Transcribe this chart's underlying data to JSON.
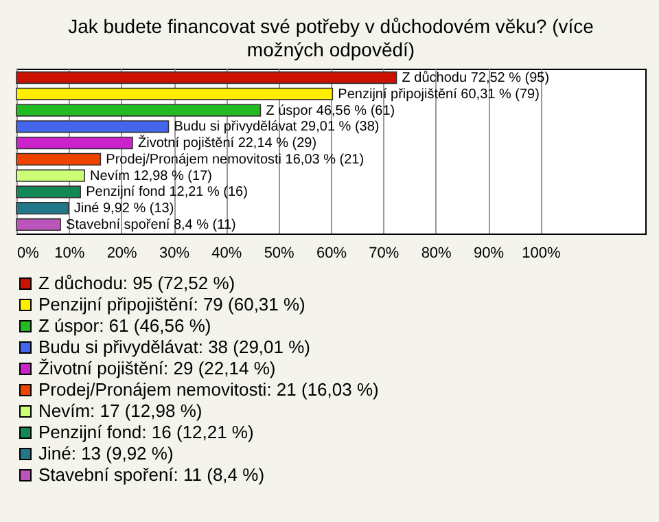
{
  "chart_data": {
    "type": "bar",
    "orientation": "horizontal",
    "stacked": true,
    "title": "Jak budete financovat své potřeby v důchodovém věku? (více možných odpovědí)",
    "categories": [
      null,
      null,
      null,
      null,
      null,
      null,
      null,
      null,
      null,
      null
    ],
    "series": [
      {
        "name": "Z důchodu: 95 (72,52 %)",
        "color": "#cc1100",
        "values": [
          72.52,
          null,
          null,
          null,
          null,
          null,
          null,
          null,
          null,
          null
        ],
        "value_labels": [
          "Z důchodu 72,52 % (95)",
          null,
          null,
          null,
          null,
          null,
          null,
          null,
          null,
          null
        ]
      },
      {
        "name": "Penzijní připojištění: 79 (60,31 %)",
        "color": "#ffee00",
        "values": [
          null,
          60.31,
          null,
          null,
          null,
          null,
          null,
          null,
          null,
          null
        ],
        "value_labels": [
          null,
          "Penzijní připojištění 60,31 % (79)",
          null,
          null,
          null,
          null,
          null,
          null,
          null,
          null
        ]
      },
      {
        "name": "Z úspor: 61 (46,56 %)",
        "color": "#22bb22",
        "values": [
          null,
          null,
          46.56,
          null,
          null,
          null,
          null,
          null,
          null,
          null
        ],
        "value_labels": [
          null,
          null,
          "Z úspor 46,56 % (61)",
          null,
          null,
          null,
          null,
          null,
          null,
          null
        ]
      },
      {
        "name": "Budu si přivydělávat: 38 (29,01 %)",
        "color": "#4466ee",
        "values": [
          null,
          null,
          null,
          29.01,
          null,
          null,
          null,
          null,
          null,
          null
        ],
        "value_labels": [
          null,
          null,
          null,
          "Budu si přivydělávat 29,01 % (38)",
          null,
          null,
          null,
          null,
          null,
          null
        ]
      },
      {
        "name": "Životní pojištění: 29 (22,14 %)",
        "color": "#cc22cc",
        "values": [
          null,
          null,
          null,
          null,
          22.14,
          null,
          null,
          null,
          null,
          null
        ],
        "value_labels": [
          null,
          null,
          null,
          null,
          "Životní pojištění 22,14 % (29)",
          null,
          null,
          null,
          null,
          null
        ]
      },
      {
        "name": "Prodej/Pronájem nemovitosti: 21 (16,03 %)",
        "color": "#ee4400",
        "values": [
          null,
          null,
          null,
          null,
          null,
          16.03,
          null,
          null,
          null,
          null
        ],
        "value_labels": [
          null,
          null,
          null,
          null,
          null,
          "Prodej/Pronájem nemovitosti 16,03 % (21)",
          null,
          null,
          null,
          null
        ]
      },
      {
        "name": "Nevím: 17 (12,98 %)",
        "color": "#ccff77",
        "values": [
          null,
          null,
          null,
          null,
          null,
          null,
          12.98,
          null,
          null,
          null
        ],
        "value_labels": [
          null,
          null,
          null,
          null,
          null,
          null,
          "Nevím 12,98 % (17)",
          null,
          null,
          null
        ]
      },
      {
        "name": "Penzijní fond: 16 (12,21 %)",
        "color": "#118855",
        "values": [
          null,
          null,
          null,
          null,
          null,
          null,
          null,
          12.21,
          null,
          null
        ],
        "value_labels": [
          null,
          null,
          null,
          null,
          null,
          null,
          null,
          "Penzijní fond 12,21 % (16)",
          null,
          null
        ]
      },
      {
        "name": "Jiné: 13 (9,92 %)",
        "color": "#227788",
        "values": [
          null,
          null,
          null,
          null,
          null,
          null,
          null,
          null,
          9.92,
          null
        ],
        "value_labels": [
          null,
          null,
          null,
          null,
          null,
          null,
          null,
          null,
          "Jiné 9,92 % (13)",
          null
        ]
      },
      {
        "name": "Stavební spoření: 11 (8,4 %)",
        "color": "#bb55bb",
        "values": [
          null,
          null,
          null,
          null,
          null,
          null,
          null,
          null,
          null,
          8.4
        ],
        "value_labels": [
          null,
          null,
          null,
          null,
          null,
          null,
          null,
          null,
          null,
          "Stavební spoření 8,4 % (11)"
        ]
      }
    ],
    "xlim": [
      0,
      120
    ],
    "xticks": [
      {
        "value": 0,
        "label": "0%"
      },
      {
        "value": 10,
        "label": "10%"
      },
      {
        "value": 20,
        "label": "20%"
      },
      {
        "value": 30,
        "label": "30%"
      },
      {
        "value": 40,
        "label": "40%"
      },
      {
        "value": 50,
        "label": "50%"
      },
      {
        "value": 60,
        "label": "60%"
      },
      {
        "value": 70,
        "label": "70%"
      },
      {
        "value": 80,
        "label": "80%"
      },
      {
        "value": 90,
        "label": "90%"
      },
      {
        "value": 100,
        "label": "100%"
      }
    ],
    "grid": "x",
    "legend": "bottom",
    "tick_labels": "x"
  }
}
